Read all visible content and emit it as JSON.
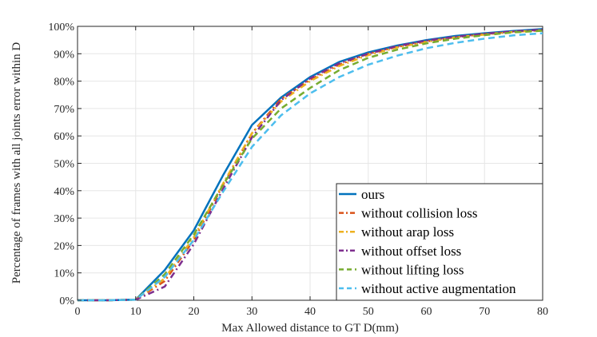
{
  "chart_data": {
    "type": "line",
    "title": "",
    "xlabel": "Max Allowed distance to GT D(mm)",
    "ylabel": "Percentage of frames with all joints error within D",
    "xlim": [
      0,
      80
    ],
    "ylim": [
      0,
      100
    ],
    "xticks": [
      0,
      10,
      20,
      30,
      40,
      50,
      60,
      70,
      80
    ],
    "xtick_labels": [
      "0",
      "10",
      "20",
      "30",
      "40",
      "50",
      "60",
      "70",
      "80"
    ],
    "yticks": [
      0,
      10,
      20,
      30,
      40,
      50,
      60,
      70,
      80,
      90,
      100
    ],
    "ytick_labels": [
      "0%",
      "10%",
      "20%",
      "30%",
      "40%",
      "50%",
      "60%",
      "70%",
      "80%",
      "90%",
      "100%"
    ],
    "grid": true,
    "legend_position": "bottom-right",
    "x": [
      0,
      5,
      10,
      15,
      20,
      25,
      30,
      35,
      40,
      45,
      50,
      55,
      60,
      65,
      70,
      75,
      80
    ],
    "series": [
      {
        "name": "ours",
        "color": "#0072BD",
        "dash": "solid",
        "values": [
          0,
          0,
          0.2,
          11,
          25.5,
          45.5,
          64,
          74,
          81.5,
          87,
          90.5,
          93,
          95,
          96.5,
          97.5,
          98.3,
          99
        ]
      },
      {
        "name": "without collision loss",
        "color": "#D95319",
        "dash": "dashdot",
        "values": [
          0,
          0,
          0.2,
          7,
          22,
          42,
          61,
          73.5,
          80.5,
          86,
          90,
          92.5,
          94.5,
          96,
          97.2,
          98,
          98.6
        ]
      },
      {
        "name": "without arap loss",
        "color": "#EDB120",
        "dash": "dashdot",
        "values": [
          0,
          0,
          0.2,
          8,
          23,
          42.5,
          61,
          72.5,
          80,
          85.5,
          89.5,
          92.3,
          94.3,
          96,
          97,
          98,
          98.5
        ]
      },
      {
        "name": "without offset loss",
        "color": "#7E2F8E",
        "dash": "dashdot",
        "values": [
          0,
          0,
          0.2,
          5,
          20.5,
          40.5,
          59.5,
          73,
          81,
          86.5,
          90,
          92.8,
          94.8,
          96.2,
          97.3,
          98.2,
          98.8
        ]
      },
      {
        "name": "without lifting loss",
        "color": "#77AC30",
        "dash": "dashed",
        "values": [
          0,
          0,
          0.2,
          9.5,
          24,
          42,
          59,
          70,
          77.5,
          84,
          88.5,
          91.5,
          93.8,
          95.5,
          96.8,
          97.8,
          98.4
        ]
      },
      {
        "name": "without active augmentation",
        "color": "#4DBEEE",
        "dash": "dashed",
        "values": [
          0,
          0,
          0.2,
          8.5,
          22,
          39.5,
          56,
          67.5,
          75.5,
          81.5,
          86,
          89.3,
          92,
          94,
          95.5,
          96.7,
          97.5
        ]
      }
    ]
  }
}
